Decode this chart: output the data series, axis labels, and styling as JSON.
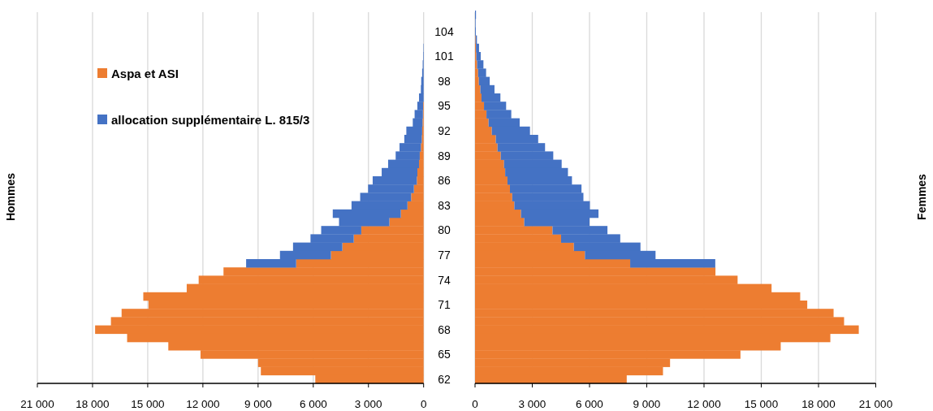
{
  "chart_data": [
    {
      "type": "bar",
      "orientation": "horizontal",
      "stacked": true,
      "ylabel": "Hommes",
      "legend": "top left",
      "grid": "x",
      "tick_labels": "x",
      "categories": [
        null,
        null,
        "104",
        null,
        null,
        "101",
        null,
        null,
        "98",
        null,
        null,
        "95",
        null,
        null,
        "92",
        null,
        null,
        "89",
        null,
        null,
        "86",
        null,
        null,
        "83",
        null,
        null,
        "80",
        null,
        null,
        "77",
        null,
        null,
        "74",
        null,
        null,
        "71",
        null,
        null,
        "68",
        null,
        null,
        "65",
        null,
        null,
        "62"
      ],
      "xlim": [
        21000,
        0
      ],
      "xticks": [
        {
          "value": 21000,
          "label": "21 000"
        },
        {
          "value": 18000,
          "label": "18 000"
        },
        {
          "value": 15000,
          "label": "15 000"
        },
        {
          "value": 12000,
          "label": "12 000"
        },
        {
          "value": 9000,
          "label": "9 000"
        },
        {
          "value": 6000,
          "label": "6 000"
        },
        {
          "value": 3000,
          "label": "3 000"
        },
        0
      ],
      "series": [
        {
          "name": "Aspa et ASI",
          "color": "#ed7d31",
          "values": [
            0,
            0,
            0,
            0,
            0,
            0,
            0,
            0,
            0,
            0,
            0,
            30,
            40,
            60,
            80,
            100,
            150,
            210,
            250,
            340,
            370,
            530,
            680,
            880,
            1240,
            1860,
            3390,
            3800,
            4420,
            5040,
            6930,
            10880,
            12230,
            12880,
            15240,
            14960,
            16420,
            17000,
            17860,
            16120,
            13880,
            12130,
            9000,
            8850,
            5890
          ]
        },
        {
          "name": "allocation supplémentaire L. 815/3",
          "color": "#4472c4",
          "values": [
            0,
            0,
            0,
            0,
            20,
            30,
            50,
            80,
            130,
            150,
            250,
            310,
            450,
            530,
            860,
            950,
            1160,
            1310,
            1680,
            1940,
            2400,
            2490,
            2770,
            3040,
            3700,
            2740,
            2180,
            2350,
            2680,
            2770,
            2720,
            0,
            0,
            0,
            0,
            0,
            0,
            0,
            0,
            0,
            0,
            0,
            0,
            0,
            0
          ]
        }
      ]
    },
    {
      "type": "bar",
      "orientation": "horizontal",
      "stacked": true,
      "ylabel": "Femmes",
      "grid": "x",
      "categories": [
        null,
        null,
        "104",
        null,
        null,
        "101",
        null,
        null,
        "98",
        null,
        null,
        "95",
        null,
        null,
        "92",
        null,
        null,
        "89",
        null,
        null,
        "86",
        null,
        null,
        "83",
        null,
        null,
        "80",
        null,
        null,
        "77",
        null,
        null,
        "74",
        null,
        null,
        "71",
        null,
        null,
        "68",
        null,
        null,
        "65",
        null,
        null,
        "62"
      ],
      "xlim": [
        0,
        21000
      ],
      "xticks": [
        0,
        {
          "value": 3000,
          "label": "3 000"
        },
        {
          "value": 6000,
          "label": "6 000"
        },
        {
          "value": 9000,
          "label": "9 000"
        },
        {
          "value": 12000,
          "label": "12 000"
        },
        {
          "value": 15000,
          "label": "15 000"
        },
        {
          "value": 18000,
          "label": "18 000"
        },
        {
          "value": 21000,
          "label": "21 000"
        }
      ],
      "series": [
        {
          "color": "#ed7d31",
          "values": [
            0,
            0,
            0,
            30,
            50,
            70,
            110,
            160,
            200,
            280,
            340,
            470,
            600,
            710,
            880,
            1090,
            1180,
            1350,
            1520,
            1580,
            1700,
            1830,
            1950,
            2060,
            2410,
            2580,
            4060,
            4510,
            5180,
            5760,
            8130,
            12600,
            13760,
            15540,
            17040,
            17410,
            18790,
            19340,
            20110,
            18620,
            16020,
            13910,
            10220,
            9850,
            7950
          ]
        },
        {
          "color": "#4472c4",
          "values": [
            50,
            30,
            40,
            70,
            160,
            230,
            330,
            420,
            570,
            740,
            990,
            1160,
            1300,
            1630,
            2000,
            2220,
            2490,
            2750,
            3020,
            3290,
            3380,
            3750,
            3730,
            3960,
            4060,
            3420,
            2880,
            3100,
            3490,
            3700,
            4460,
            0,
            0,
            0,
            0,
            0,
            0,
            0,
            0,
            0,
            0,
            0,
            0,
            0,
            0
          ]
        }
      ]
    }
  ]
}
